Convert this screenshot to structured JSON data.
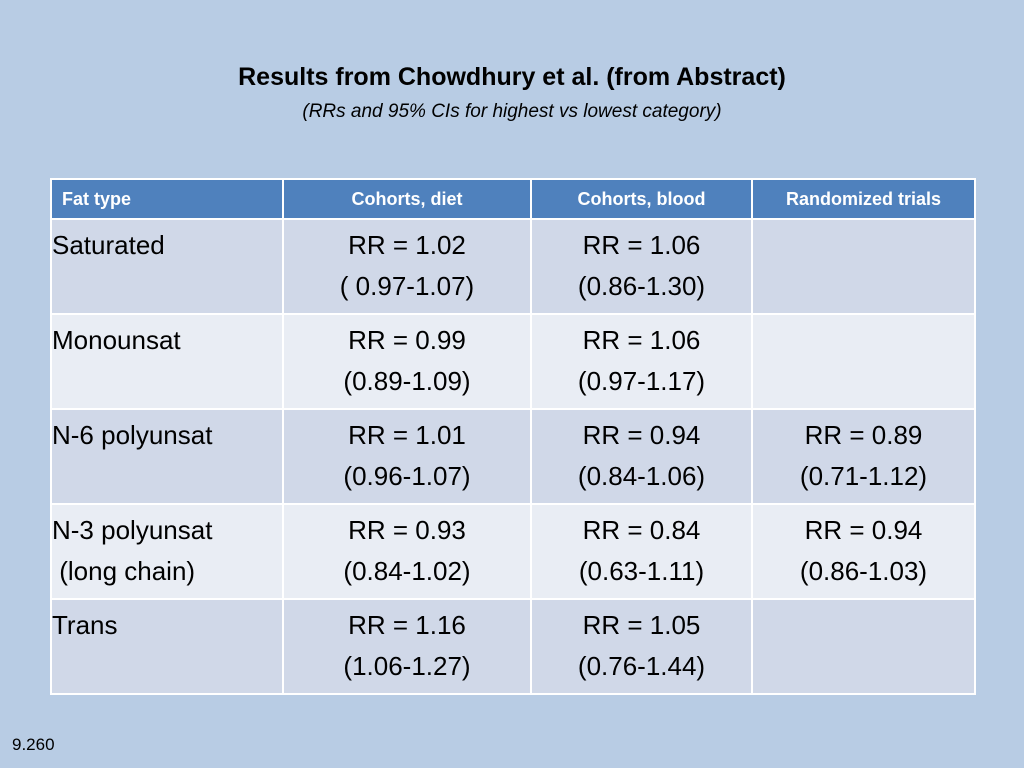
{
  "title": "Results from Chowdhury et al. (from Abstract)",
  "subtitle": "(RRs and 95% CIs for highest vs lowest category)",
  "table": {
    "headers": [
      "Fat type",
      "Cohorts, diet",
      "Cohorts, blood",
      "Randomized trials"
    ],
    "rows": [
      {
        "fat_type": [
          "Saturated"
        ],
        "diet": [
          "RR = 1.02",
          "( 0.97-1.07)"
        ],
        "blood": [
          "RR = 1.06",
          "(0.86-1.30)"
        ],
        "trials": []
      },
      {
        "fat_type": [
          "Monounsat"
        ],
        "diet": [
          "RR = 0.99",
          "(0.89-1.09)"
        ],
        "blood": [
          "RR = 1.06",
          "(0.97-1.17)"
        ],
        "trials": []
      },
      {
        "fat_type": [
          "N-6 polyunsat"
        ],
        "diet": [
          "RR = 1.01",
          "(0.96-1.07)"
        ],
        "blood": [
          "RR = 0.94",
          "(0.84-1.06)"
        ],
        "trials": [
          "RR = 0.89",
          "(0.71-1.12)"
        ]
      },
      {
        "fat_type": [
          "N-3 polyunsat",
          " (long chain)"
        ],
        "diet": [
          "RR = 0.93",
          "(0.84-1.02)"
        ],
        "blood": [
          "RR = 0.84",
          "(0.63-1.11)"
        ],
        "trials": [
          "RR = 0.94",
          "(0.86-1.03)"
        ]
      },
      {
        "fat_type": [
          "Trans"
        ],
        "diet": [
          "RR = 1.16",
          "(1.06-1.27)"
        ],
        "blood": [
          "RR = 1.05",
          "(0.76-1.44)"
        ],
        "trials": []
      }
    ]
  },
  "slide_number": "9.260",
  "colors": {
    "background": "#b8cce4",
    "header": "#4f81bd",
    "row_odd": "#d0d8e8",
    "row_even": "#e9edf4"
  }
}
